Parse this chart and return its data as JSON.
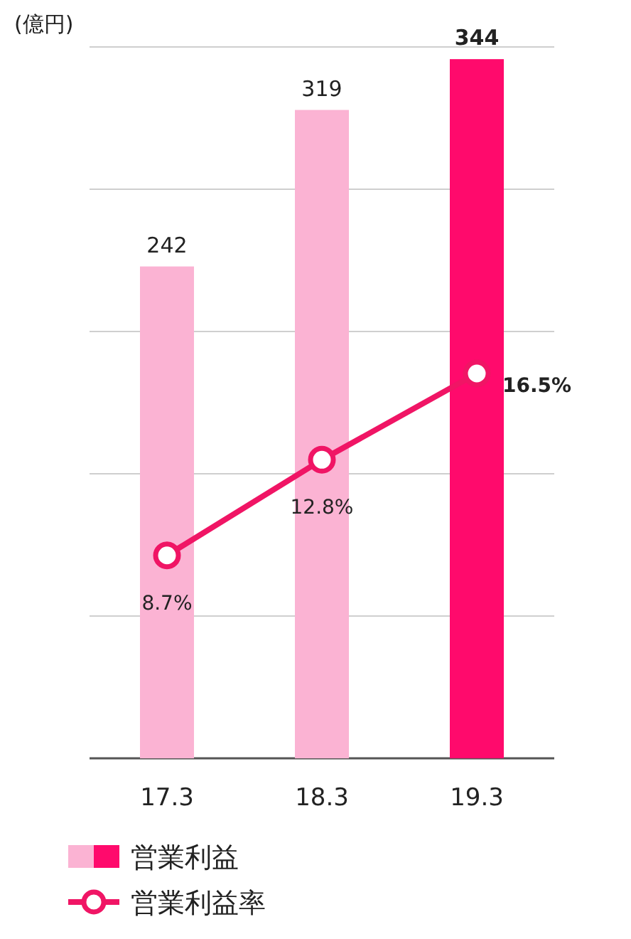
{
  "chart_data": {
    "type": "bar",
    "ylabel": "(億円)",
    "categories": [
      "17.3",
      "18.3",
      "19.3"
    ],
    "series": [
      {
        "name": "営業利益",
        "colors": [
          "#fbb3d3",
          "#fbb3d3",
          "#ff0a6c"
        ],
        "values": [
          242,
          319,
          344
        ],
        "value_labels": [
          "242",
          "319",
          "344"
        ]
      },
      {
        "name": "営業利益率",
        "type": "line",
        "axis": "y2",
        "color": "#f01565",
        "values": [
          8.7,
          12.8,
          16.5
        ],
        "value_labels": [
          "8.7%",
          "12.8%",
          "16.5%"
        ]
      }
    ],
    "ylim": [
      0,
      350
    ],
    "yticks": [
      {
        "value": 0,
        "label": null
      },
      {
        "value": 70,
        "label": null
      },
      {
        "value": 140,
        "label": null
      },
      {
        "value": 210,
        "label": null
      },
      {
        "value": 280,
        "label": null
      },
      {
        "value": 350,
        "label": null
      }
    ],
    "y2lim": [
      0,
      30.5
    ],
    "grid": "y",
    "legend": "bottom",
    "marker": "circle",
    "tick_labels": "x"
  }
}
